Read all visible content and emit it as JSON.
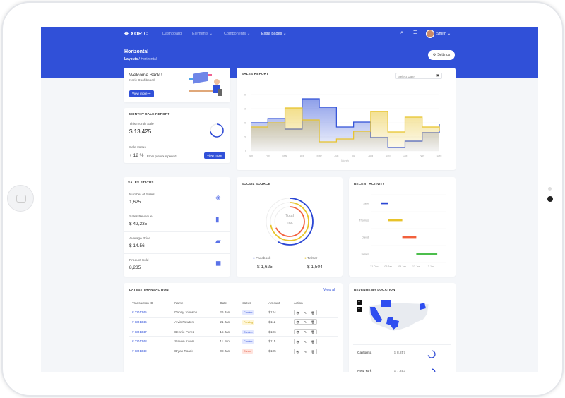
{
  "brand": "XORIC",
  "nav": [
    {
      "label": "Dashboard",
      "caret": false
    },
    {
      "label": "Elements",
      "caret": true
    },
    {
      "label": "Components",
      "caret": true
    },
    {
      "label": "Extra pages",
      "caret": true,
      "active": true
    }
  ],
  "user": {
    "name": "Smith"
  },
  "page": {
    "title": "Horizontal",
    "breadcrumb": [
      "Layouts",
      "Horizontal"
    ],
    "settings_label": "Settings"
  },
  "welcome": {
    "title": "Welcome Back !",
    "subtitle": "Xoric Dashboard",
    "button": "View more"
  },
  "monthly": {
    "title": "Monthy Sale Report",
    "this_month_label": "This month Sale",
    "this_month_value": "$ 13,425",
    "progress": 0.72,
    "status_label": "Sale status",
    "change": "+ 12 %",
    "change_note": "From previous period",
    "button": "View more"
  },
  "sales_report": {
    "title": "Sales Report",
    "date_placeholder": "Select Date"
  },
  "chart_data": {
    "type": "line",
    "step": true,
    "area": true,
    "title": "",
    "xlabel": "Month",
    "ylabel": "",
    "ylim": [
      0,
      80
    ],
    "yticks": [
      0,
      20,
      40,
      60,
      80
    ],
    "categories": [
      "Jan",
      "Feb",
      "Mar",
      "Apr",
      "May",
      "Jun",
      "Jul",
      "Aug",
      "Sep",
      "Oct",
      "Nov",
      "Dec"
    ],
    "series": [
      {
        "color": "#3050d8",
        "values": [
          40,
          46,
          31,
          74,
          62,
          34,
          41,
          19,
          5,
          14,
          26,
          38
        ]
      },
      {
        "color": "#e8c32a",
        "values": [
          34,
          40,
          61,
          44,
          13,
          17,
          28,
          56,
          27,
          48,
          34,
          28
        ]
      }
    ]
  },
  "sales_status": {
    "title": "Sales Status",
    "items": [
      {
        "label": "Number of Sales",
        "value": "1,625",
        "icon": "layers-icon"
      },
      {
        "label": "Sales Revenue",
        "value": "$ 42,235",
        "icon": "bar-chart-icon"
      },
      {
        "label": "Average Price",
        "value": "$ 14.56",
        "icon": "ticket-icon"
      },
      {
        "label": "Product Sold",
        "value": "8,235",
        "icon": "box-icon"
      }
    ]
  },
  "social": {
    "title": "Social Source",
    "total_label": "Total",
    "total": "166",
    "arcs": [
      {
        "color": "#2a46d4",
        "fraction": 0.58
      },
      {
        "color": "#e8c32a",
        "fraction": 0.72
      },
      {
        "color": "#f2603c",
        "fraction": 0.68
      }
    ],
    "legend": [
      {
        "label": "Facebook",
        "value": "$ 1,625",
        "color": "#2a46d4"
      },
      {
        "label": "Twitter",
        "value": "$ 1,504",
        "color": "#e8c32a"
      }
    ]
  },
  "activity": {
    "title": "Recent Activity",
    "ticks": [
      "31 Dec",
      "05 Jan",
      "09 Jan",
      "13 Jan",
      "17 Jan"
    ],
    "rows": [
      {
        "name": "Jack",
        "start": 2,
        "end": 4,
        "color": "#2a46d4"
      },
      {
        "name": "Thomas",
        "start": 4,
        "end": 8,
        "color": "#e8c32a"
      },
      {
        "name": "David",
        "start": 8,
        "end": 12,
        "color": "#f2603c"
      },
      {
        "name": "James",
        "start": 12,
        "end": 18,
        "color": "#4cbe4c"
      }
    ]
  },
  "transactions": {
    "title": "Latest Transaction",
    "view_all": "View all",
    "headers": [
      "Transaction ID",
      "Name",
      "Date",
      "status",
      "Amount",
      "Action"
    ],
    "rows": [
      {
        "id": "# XO1345",
        "name": "Danny Johnson",
        "date": "26 Jan",
        "status": "Confirm",
        "amount": "$124"
      },
      {
        "id": "# XO1346",
        "name": "Alvin Newton",
        "date": "21 Jan",
        "status": "Pending",
        "amount": "$112"
      },
      {
        "id": "# XO1347",
        "name": "Bennie Perez",
        "date": "15 Jan",
        "status": "Confirm",
        "amount": "$106"
      },
      {
        "id": "# XO1348",
        "name": "Steven Kwon",
        "date": "11 Jan",
        "status": "Confirm",
        "amount": "$115"
      },
      {
        "id": "# XO1349",
        "name": "Bryan Roark",
        "date": "08 Jan",
        "status": "Cancel",
        "amount": "$105"
      }
    ]
  },
  "revenue": {
    "title": "Revenue by Location",
    "zoom_in": "+",
    "zoom_out": "−",
    "rows": [
      {
        "state": "California",
        "value": "$ 8,257",
        "progress": 0.7
      },
      {
        "state": "New York",
        "value": "$ 7,253",
        "progress": 0.6
      }
    ]
  }
}
